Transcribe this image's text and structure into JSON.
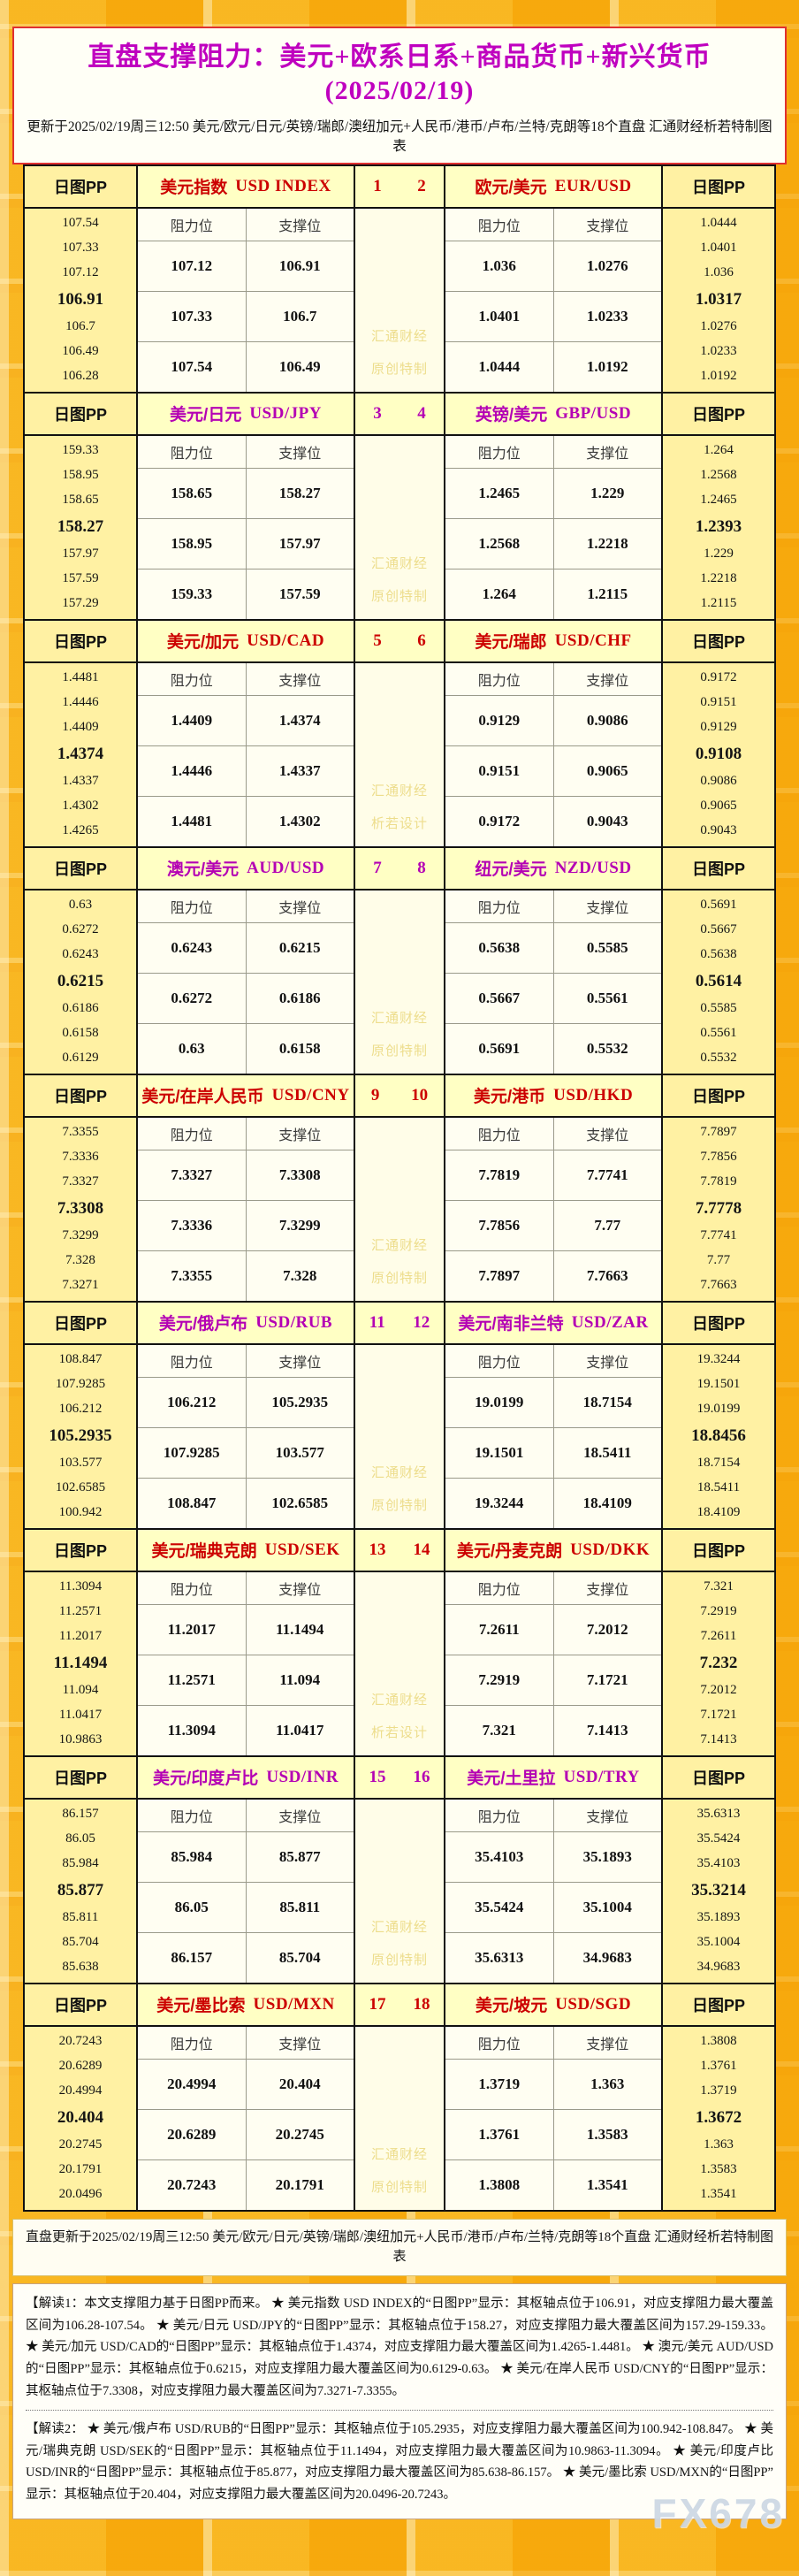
{
  "title": "直盘支撑阻力：美元+欧系日系+商品货币+新兴货币(2025/02/19)",
  "subtitle": "更新于2025/02/19周三12:50 美元/欧元/日元/英镑/瑞郎/澳纽加元+人民币/港币/卢布/兰特/克朗等18个直盘 汇通财经析若特制图表",
  "labels": {
    "pp": "日图PP",
    "resistance": "阻力位",
    "support": "支撑位"
  },
  "colors": {
    "red_theme": "#cc0000",
    "purple_theme": "#b400b4",
    "title_magenta": "#bf00bf",
    "pp_column_bg": "#fff1a3",
    "header_bg": "#ffffc4",
    "cell_bg": "#fffef2",
    "watermark_gold": "#eddd8c"
  },
  "blocks": [
    {
      "theme": "red",
      "num_left": "1",
      "num_right": "2",
      "watermark": [
        "汇通财经",
        "原创特制"
      ],
      "left": {
        "name_cn": "美元指数",
        "name_en": "USD INDEX",
        "pp": [
          "107.54",
          "107.33",
          "107.12",
          "106.91",
          "106.7",
          "106.49",
          "106.28"
        ],
        "rows": [
          [
            "107.12",
            "106.91"
          ],
          [
            "107.33",
            "106.7"
          ],
          [
            "107.54",
            "106.49"
          ]
        ]
      },
      "right": {
        "name_cn": "欧元/美元",
        "name_en": "EUR/USD",
        "pp": [
          "1.0444",
          "1.0401",
          "1.036",
          "1.0317",
          "1.0276",
          "1.0233",
          "1.0192"
        ],
        "rows": [
          [
            "1.036",
            "1.0276"
          ],
          [
            "1.0401",
            "1.0233"
          ],
          [
            "1.0444",
            "1.0192"
          ]
        ]
      }
    },
    {
      "theme": "purple",
      "num_left": "3",
      "num_right": "4",
      "watermark": [
        "汇通财经",
        "原创特制"
      ],
      "left": {
        "name_cn": "美元/日元",
        "name_en": "USD/JPY",
        "pp": [
          "159.33",
          "158.95",
          "158.65",
          "158.27",
          "157.97",
          "157.59",
          "157.29"
        ],
        "rows": [
          [
            "158.65",
            "158.27"
          ],
          [
            "158.95",
            "157.97"
          ],
          [
            "159.33",
            "157.59"
          ]
        ]
      },
      "right": {
        "name_cn": "英镑/美元",
        "name_en": "GBP/USD",
        "pp": [
          "1.264",
          "1.2568",
          "1.2465",
          "1.2393",
          "1.229",
          "1.2218",
          "1.2115"
        ],
        "rows": [
          [
            "1.2465",
            "1.229"
          ],
          [
            "1.2568",
            "1.2218"
          ],
          [
            "1.264",
            "1.2115"
          ]
        ]
      }
    },
    {
      "theme": "red",
      "num_left": "5",
      "num_right": "6",
      "watermark": [
        "汇通财经",
        "析若设计"
      ],
      "left": {
        "name_cn": "美元/加元",
        "name_en": "USD/CAD",
        "pp": [
          "1.4481",
          "1.4446",
          "1.4409",
          "1.4374",
          "1.4337",
          "1.4302",
          "1.4265"
        ],
        "rows": [
          [
            "1.4409",
            "1.4374"
          ],
          [
            "1.4446",
            "1.4337"
          ],
          [
            "1.4481",
            "1.4302"
          ]
        ]
      },
      "right": {
        "name_cn": "美元/瑞郎",
        "name_en": "USD/CHF",
        "pp": [
          "0.9172",
          "0.9151",
          "0.9129",
          "0.9108",
          "0.9086",
          "0.9065",
          "0.9043"
        ],
        "rows": [
          [
            "0.9129",
            "0.9086"
          ],
          [
            "0.9151",
            "0.9065"
          ],
          [
            "0.9172",
            "0.9043"
          ]
        ]
      }
    },
    {
      "theme": "purple",
      "num_left": "7",
      "num_right": "8",
      "watermark": [
        "汇通财经",
        "原创特制"
      ],
      "left": {
        "name_cn": "澳元/美元",
        "name_en": "AUD/USD",
        "pp": [
          "0.63",
          "0.6272",
          "0.6243",
          "0.6215",
          "0.6186",
          "0.6158",
          "0.6129"
        ],
        "rows": [
          [
            "0.6243",
            "0.6215"
          ],
          [
            "0.6272",
            "0.6186"
          ],
          [
            "0.63",
            "0.6158"
          ]
        ]
      },
      "right": {
        "name_cn": "纽元/美元",
        "name_en": "NZD/USD",
        "pp": [
          "0.5691",
          "0.5667",
          "0.5638",
          "0.5614",
          "0.5585",
          "0.5561",
          "0.5532"
        ],
        "rows": [
          [
            "0.5638",
            "0.5585"
          ],
          [
            "0.5667",
            "0.5561"
          ],
          [
            "0.5691",
            "0.5532"
          ]
        ]
      }
    },
    {
      "theme": "red",
      "num_left": "9",
      "num_right": "10",
      "watermark": [
        "汇通财经",
        "原创特制"
      ],
      "left": {
        "name_cn": "美元/在岸人民币",
        "name_en": "USD/CNY",
        "pp": [
          "7.3355",
          "7.3336",
          "7.3327",
          "7.3308",
          "7.3299",
          "7.328",
          "7.3271"
        ],
        "rows": [
          [
            "7.3327",
            "7.3308"
          ],
          [
            "7.3336",
            "7.3299"
          ],
          [
            "7.3355",
            "7.328"
          ]
        ]
      },
      "right": {
        "name_cn": "美元/港币",
        "name_en": "USD/HKD",
        "pp": [
          "7.7897",
          "7.7856",
          "7.7819",
          "7.7778",
          "7.7741",
          "7.77",
          "7.7663"
        ],
        "rows": [
          [
            "7.7819",
            "7.7741"
          ],
          [
            "7.7856",
            "7.77"
          ],
          [
            "7.7897",
            "7.7663"
          ]
        ]
      }
    },
    {
      "theme": "purple",
      "num_left": "11",
      "num_right": "12",
      "watermark": [
        "汇通财经",
        "原创特制"
      ],
      "left": {
        "name_cn": "美元/俄卢布",
        "name_en": "USD/RUB",
        "pp": [
          "108.847",
          "107.9285",
          "106.212",
          "105.2935",
          "103.577",
          "102.6585",
          "100.942"
        ],
        "rows": [
          [
            "106.212",
            "105.2935"
          ],
          [
            "107.9285",
            "103.577"
          ],
          [
            "108.847",
            "102.6585"
          ]
        ]
      },
      "right": {
        "name_cn": "美元/南非兰特",
        "name_en": "USD/ZAR",
        "pp": [
          "19.3244",
          "19.1501",
          "19.0199",
          "18.8456",
          "18.7154",
          "18.5411",
          "18.4109"
        ],
        "rows": [
          [
            "19.0199",
            "18.7154"
          ],
          [
            "19.1501",
            "18.5411"
          ],
          [
            "19.3244",
            "18.4109"
          ]
        ]
      }
    },
    {
      "theme": "red",
      "num_left": "13",
      "num_right": "14",
      "watermark": [
        "汇通财经",
        "析若设计"
      ],
      "left": {
        "name_cn": "美元/瑞典克朗",
        "name_en": "USD/SEK",
        "pp": [
          "11.3094",
          "11.2571",
          "11.2017",
          "11.1494",
          "11.094",
          "11.0417",
          "10.9863"
        ],
        "rows": [
          [
            "11.2017",
            "11.1494"
          ],
          [
            "11.2571",
            "11.094"
          ],
          [
            "11.3094",
            "11.0417"
          ]
        ]
      },
      "right": {
        "name_cn": "美元/丹麦克朗",
        "name_en": "USD/DKK",
        "pp": [
          "7.321",
          "7.2919",
          "7.2611",
          "7.232",
          "7.2012",
          "7.1721",
          "7.1413"
        ],
        "rows": [
          [
            "7.2611",
            "7.2012"
          ],
          [
            "7.2919",
            "7.1721"
          ],
          [
            "7.321",
            "7.1413"
          ]
        ]
      }
    },
    {
      "theme": "purple",
      "num_left": "15",
      "num_right": "16",
      "watermark": [
        "汇通财经",
        "原创特制"
      ],
      "left": {
        "name_cn": "美元/印度卢比",
        "name_en": "USD/INR",
        "pp": [
          "86.157",
          "86.05",
          "85.984",
          "85.877",
          "85.811",
          "85.704",
          "85.638"
        ],
        "rows": [
          [
            "85.984",
            "85.877"
          ],
          [
            "86.05",
            "85.811"
          ],
          [
            "86.157",
            "85.704"
          ]
        ]
      },
      "right": {
        "name_cn": "美元/土里拉",
        "name_en": "USD/TRY",
        "pp": [
          "35.6313",
          "35.5424",
          "35.4103",
          "35.3214",
          "35.1893",
          "35.1004",
          "34.9683"
        ],
        "rows": [
          [
            "35.4103",
            "35.1893"
          ],
          [
            "35.5424",
            "35.1004"
          ],
          [
            "35.6313",
            "34.9683"
          ]
        ]
      }
    },
    {
      "theme": "red",
      "num_left": "17",
      "num_right": "18",
      "watermark": [
        "汇通财经",
        "原创特制"
      ],
      "left": {
        "name_cn": "美元/墨比索",
        "name_en": "USD/MXN",
        "pp": [
          "20.7243",
          "20.6289",
          "20.4994",
          "20.404",
          "20.2745",
          "20.1791",
          "20.0496"
        ],
        "rows": [
          [
            "20.4994",
            "20.404"
          ],
          [
            "20.6289",
            "20.2745"
          ],
          [
            "20.7243",
            "20.1791"
          ]
        ]
      },
      "right": {
        "name_cn": "美元/坡元",
        "name_en": "USD/SGD",
        "pp": [
          "1.3808",
          "1.3761",
          "1.3719",
          "1.3672",
          "1.363",
          "1.3583",
          "1.3541"
        ],
        "rows": [
          [
            "1.3719",
            "1.363"
          ],
          [
            "1.3761",
            "1.3583"
          ],
          [
            "1.3808",
            "1.3541"
          ]
        ]
      }
    }
  ],
  "footer": "直盘更新于2025/02/19周三12:50 美元/欧元/日元/英镑/瑞郎/澳纽加元+人民币/港币/卢布/兰特/克朗等18个直盘 汇通财经析若特制图表",
  "notes": [
    "【解读1：本文支撑阻力基于日图PP而来。 ★ 美元指数 USD INDEX的“日图PP”显示：其枢轴点位于106.91，对应支撑阻力最大覆盖区间为106.28-107.54。 ★ 美元/日元 USD/JPY的“日图PP”显示：其枢轴点位于158.27，对应支撑阻力最大覆盖区间为157.29-159.33。 ★ 美元/加元 USD/CAD的“日图PP”显示：其枢轴点位于1.4374，对应支撑阻力最大覆盖区间为1.4265-1.4481。 ★ 澳元/美元 AUD/USD的“日图PP”显示：其枢轴点位于0.6215，对应支撑阻力最大覆盖区间为0.6129-0.63。 ★ 美元/在岸人民币 USD/CNY的“日图PP”显示：其枢轴点位于7.3308，对应支撑阻力最大覆盖区间为7.3271-7.3355。",
    "【解读2： ★ 美元/俄卢布 USD/RUB的“日图PP”显示：其枢轴点位于105.2935，对应支撑阻力最大覆盖区间为100.942-108.847。 ★ 美元/瑞典克朗 USD/SEK的“日图PP”显示：其枢轴点位于11.1494，对应支撑阻力最大覆盖区间为10.9863-11.3094。 ★ 美元/印度卢比 USD/INR的“日图PP”显示：其枢轴点位于85.877，对应支撑阻力最大覆盖区间为85.638-86.157。 ★ 美元/墨比索 USD/MXN的“日图PP”显示：其枢轴点位于20.404，对应支撑阻力最大覆盖区间为20.0496-20.7243。"
  ],
  "brand_watermark": "FX678"
}
